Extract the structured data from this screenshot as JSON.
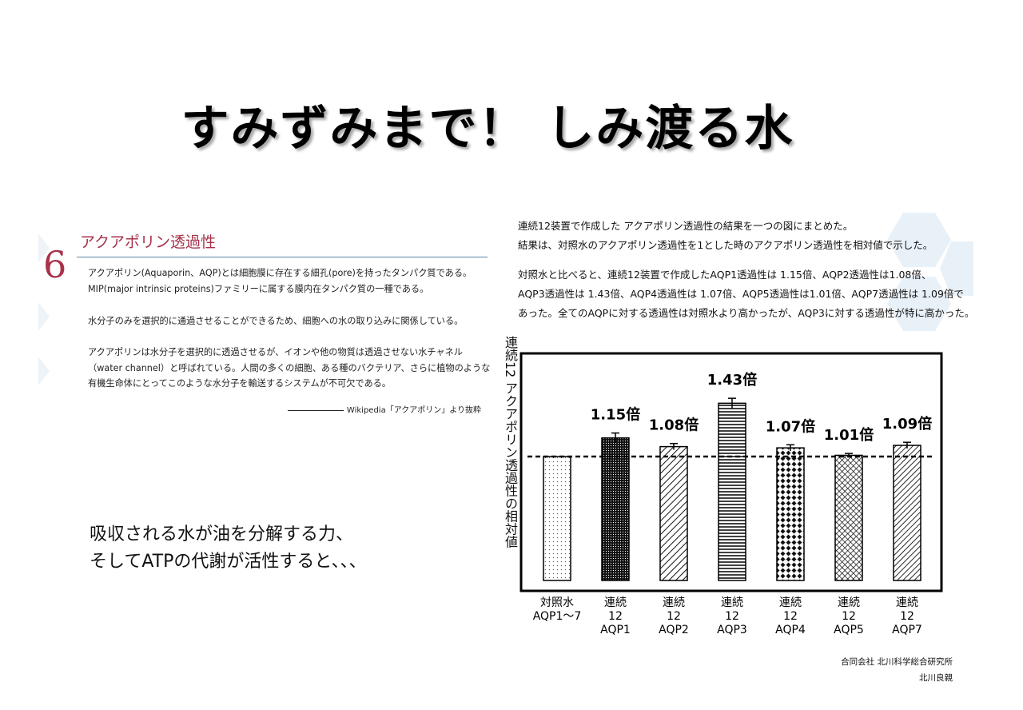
{
  "title": "すみずみまで！ しみ渡る水",
  "excerpt": {
    "number": "6",
    "heading": "アクアポリン透過性",
    "lines": [
      "アクアポリン(Aquaporin、AQP)とは細胞膜に存在する細孔(pore)を持ったタンパク質である。",
      "MIP(major intrinsic proteins)ファミリーに属する膜内在タンパク質の一種である。",
      "水分子のみを選択的に通過させることができるため、細胞への水の取り込みに関係している。",
      "アクアポリンは水分子を選択的に透過させるが、イオンや他の物質は透過させない水チャネル",
      "（water channel）と呼ばれている。人間の多くの細胞、ある種のバクテリア、さらに植物のような",
      "有機生命体にとってこのような水分子を輸送するシステムが不可欠である。"
    ],
    "source": "Wikipedia「アクアポリン」より抜粋"
  },
  "callout": {
    "line1": "吸収される水が油を分解する力、",
    "line2": "そしてATPの代謝が活性すると、、、"
  },
  "summary": {
    "lines": [
      "連続12装置で作成した アクアポリン透過性の結果を一つの図にまとめた。",
      "結果は、対照水のアクアポリン透過性を1とした時のアクアポリン透過性を相対値で示した。",
      "対照水と比べると、連続12装置で作成したAQP1透過性は 1.15倍、AQP2透過性は1.08倍、",
      "AQP3透過性は 1.43倍、AQP4透過性は 1.07倍、AQP5透過性は1.01倍、AQP7透過性は 1.09倍で",
      "あった。全てのAQPに対する透過性は対照水より高かったが、AQP3に対する透過性が特に高かった。"
    ]
  },
  "chart_data": {
    "type": "bar",
    "ylabel": "連続12 アクアポリン透過性の相対値",
    "categories": [
      [
        "対照水",
        "AQP1～7"
      ],
      [
        "連続",
        "12",
        "AQP1"
      ],
      [
        "連続",
        "12",
        "AQP2"
      ],
      [
        "連続",
        "12",
        "AQP3"
      ],
      [
        "連続",
        "12",
        "AQP4"
      ],
      [
        "連続",
        "12",
        "AQP5"
      ],
      [
        "連続",
        "12",
        "AQP7"
      ]
    ],
    "values": [
      1.0,
      1.15,
      1.08,
      1.43,
      1.07,
      1.01,
      1.09
    ],
    "errors": [
      0.0,
      0.04,
      0.025,
      0.04,
      0.025,
      0.015,
      0.025
    ],
    "data_labels": [
      "",
      "1.15倍",
      "1.08倍",
      "1.43倍",
      "1.07倍",
      "1.01倍",
      "1.09倍"
    ],
    "patterns": [
      "dots-sparse",
      "dots-dense",
      "diagonal",
      "horizontal",
      "diamond",
      "crosshatch",
      "diagonal-dense"
    ],
    "baseline": 1.0,
    "ylim": [
      0,
      1.6
    ],
    "grid": false,
    "legend": "none"
  },
  "credits": {
    "company": "合同会社 北川科学総合研究所",
    "person": "北川良親"
  },
  "colors": {
    "accent": "#a8324a",
    "rule": "#5a86a8",
    "bars": "#111111"
  }
}
